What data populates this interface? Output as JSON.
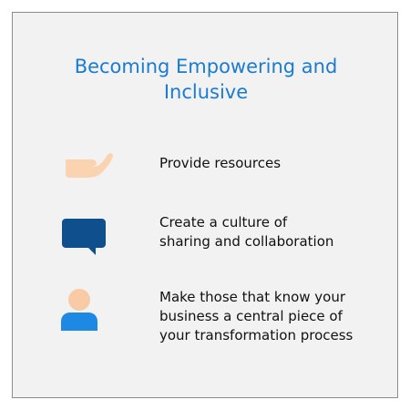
{
  "title": {
    "line1": "Becoming Empowering and",
    "line2": "Inclusive"
  },
  "items": [
    {
      "icon": "open-hand-icon",
      "lines": [
        "Provide resources"
      ]
    },
    {
      "icon": "speech-bubble-icon",
      "lines": [
        "Create a culture of",
        "sharing and collaboration"
      ]
    },
    {
      "icon": "person-icon",
      "lines": [
        "Make those that know your",
        "business a central piece of",
        "your transformation process"
      ]
    }
  ],
  "colors": {
    "title": "#1a7bd1",
    "hand": "#fbd3b0",
    "bubble": "#0f4f8e",
    "person_head": "#f8cba6",
    "person_body": "#1e88e5",
    "card_bg": "#f2f2f2",
    "card_border": "#8c8c8c"
  }
}
